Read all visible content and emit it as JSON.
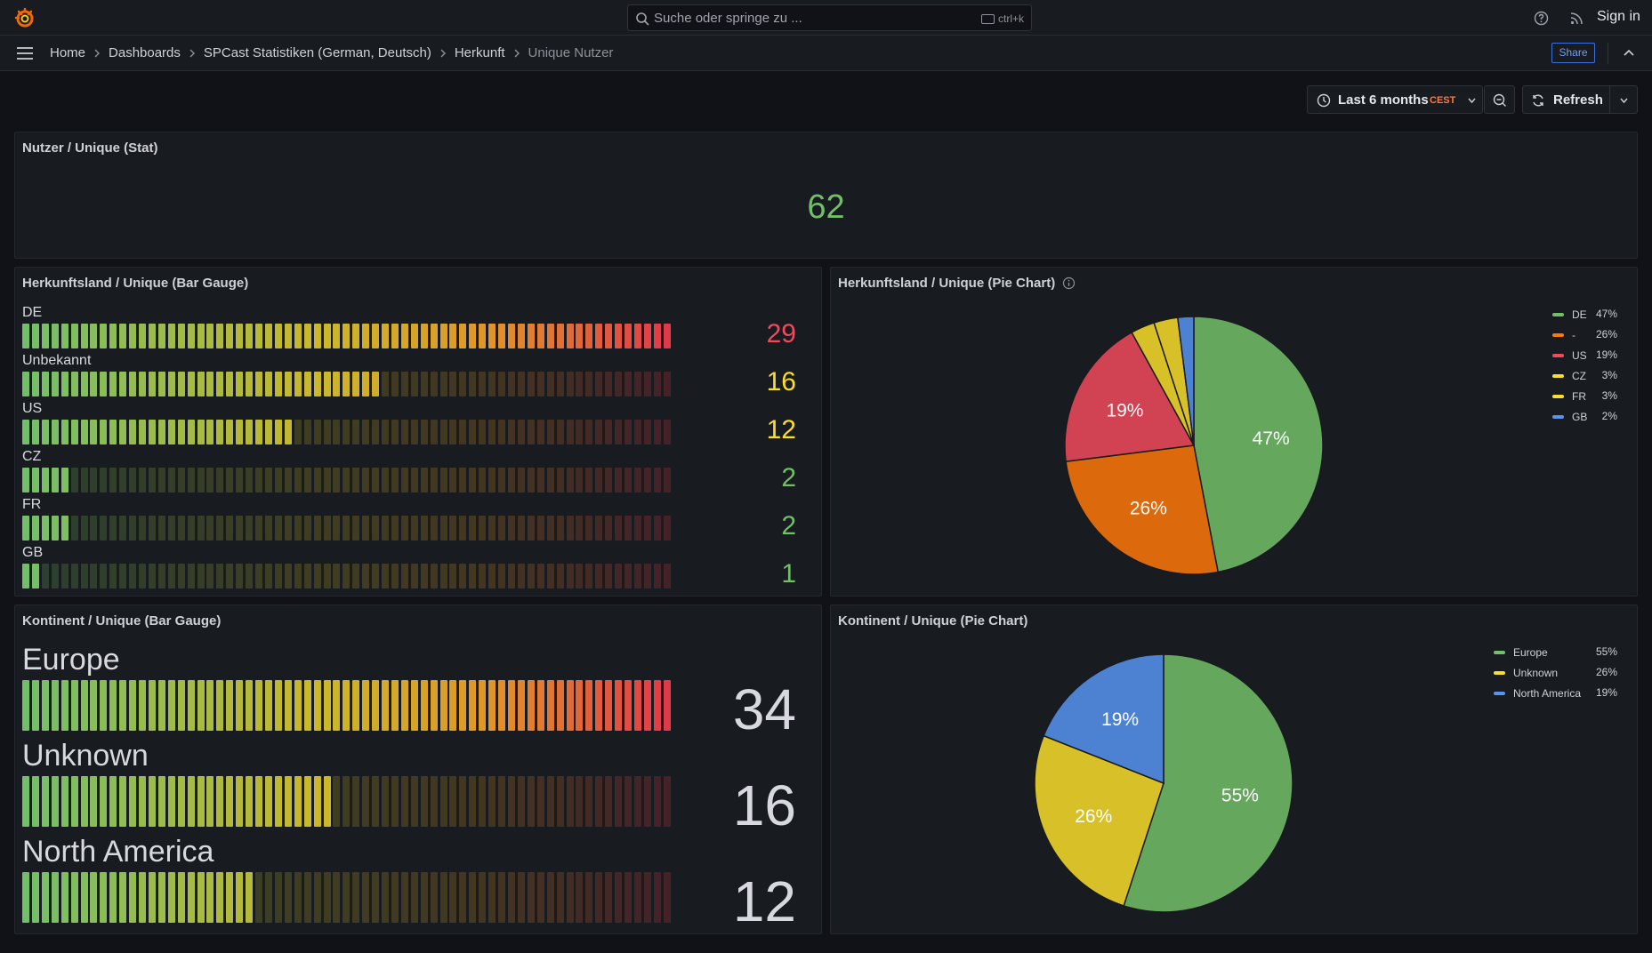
{
  "topbar": {
    "search_placeholder": "Suche oder springe zu ...",
    "search_shortcut": "ctrl+k",
    "signin_label": "Sign in",
    "accent": "#f46800"
  },
  "breadcrumb": {
    "items": [
      "Home",
      "Dashboards",
      "SPCast Statistiken (German, Deutsch)",
      "Herkunft",
      "Unique Nutzer"
    ]
  },
  "toolbar": {
    "share_label": "Share",
    "time_range": "Last 6 months",
    "timezone": "CEST",
    "refresh_label": "Refresh"
  },
  "stat_panel": {
    "title": "Nutzer / Unique (Stat)",
    "value": "62",
    "color": "#73bf69"
  },
  "country_gauge": {
    "title": "Herkunftsland / Unique (Bar Gauge)",
    "max": 29,
    "rows": [
      {
        "label": "DE",
        "value": 29,
        "value_text": "29",
        "color": "#f2495c"
      },
      {
        "label": "Unbekannt",
        "value": 16,
        "value_text": "16",
        "color": "#fade2a"
      },
      {
        "label": "US",
        "value": 12,
        "value_text": "12",
        "color": "#fade2a"
      },
      {
        "label": "CZ",
        "value": 2,
        "value_text": "2",
        "color": "#73bf69"
      },
      {
        "label": "FR",
        "value": 2,
        "value_text": "2",
        "color": "#73bf69"
      },
      {
        "label": "GB",
        "value": 1,
        "value_text": "1",
        "color": "#73bf69"
      }
    ]
  },
  "country_pie": {
    "title": "Herkunftsland / Unique (Pie Chart)",
    "legend": [
      {
        "name": "DE",
        "pct": "47%",
        "color": "#73bf69"
      },
      {
        "name": "-",
        "pct": "26%",
        "color": "#ff780a"
      },
      {
        "name": "US",
        "pct": "19%",
        "color": "#f2495c"
      },
      {
        "name": "CZ",
        "pct": "3%",
        "color": "#fade2a"
      },
      {
        "name": "FR",
        "pct": "3%",
        "color": "#fade2a"
      },
      {
        "name": "GB",
        "pct": "2%",
        "color": "#5794f2"
      }
    ]
  },
  "continent_gauge": {
    "title": "Kontinent / Unique (Bar Gauge)",
    "max": 34,
    "rows": [
      {
        "label": "Europe",
        "value": 34,
        "value_text": "34"
      },
      {
        "label": "Unknown",
        "value": 16,
        "value_text": "16"
      },
      {
        "label": "North America",
        "value": 12,
        "value_text": "12"
      }
    ]
  },
  "continent_pie": {
    "title": "Kontinent / Unique (Pie Chart)",
    "legend": [
      {
        "name": "Europe",
        "pct": "55%",
        "color": "#73bf69"
      },
      {
        "name": "Unknown",
        "pct": "26%",
        "color": "#fade2a"
      },
      {
        "name": "North America",
        "pct": "19%",
        "color": "#5794f2"
      }
    ]
  },
  "chart_data": [
    {
      "type": "bar",
      "title": "Herkunftsland / Unique (Bar Gauge)",
      "categories": [
        "DE",
        "Unbekannt",
        "US",
        "CZ",
        "FR",
        "GB"
      ],
      "values": [
        29,
        16,
        12,
        2,
        2,
        1
      ]
    },
    {
      "type": "pie",
      "title": "Herkunftsland / Unique (Pie Chart)",
      "categories": [
        "DE",
        "-",
        "US",
        "CZ",
        "FR",
        "GB"
      ],
      "values": [
        47,
        26,
        19,
        3,
        3,
        2
      ],
      "slice_labels": [
        "47%",
        "26%",
        "19%",
        "",
        "",
        ""
      ],
      "legend_position": "right"
    },
    {
      "type": "bar",
      "title": "Kontinent / Unique (Bar Gauge)",
      "categories": [
        "Europe",
        "Unknown",
        "North America"
      ],
      "values": [
        34,
        16,
        12
      ]
    },
    {
      "type": "pie",
      "title": "Kontinent / Unique (Pie Chart)",
      "categories": [
        "Europe",
        "Unknown",
        "North America"
      ],
      "values": [
        55,
        26,
        19
      ],
      "slice_labels": [
        "55%",
        "26%",
        "19%"
      ],
      "legend_position": "right"
    }
  ]
}
